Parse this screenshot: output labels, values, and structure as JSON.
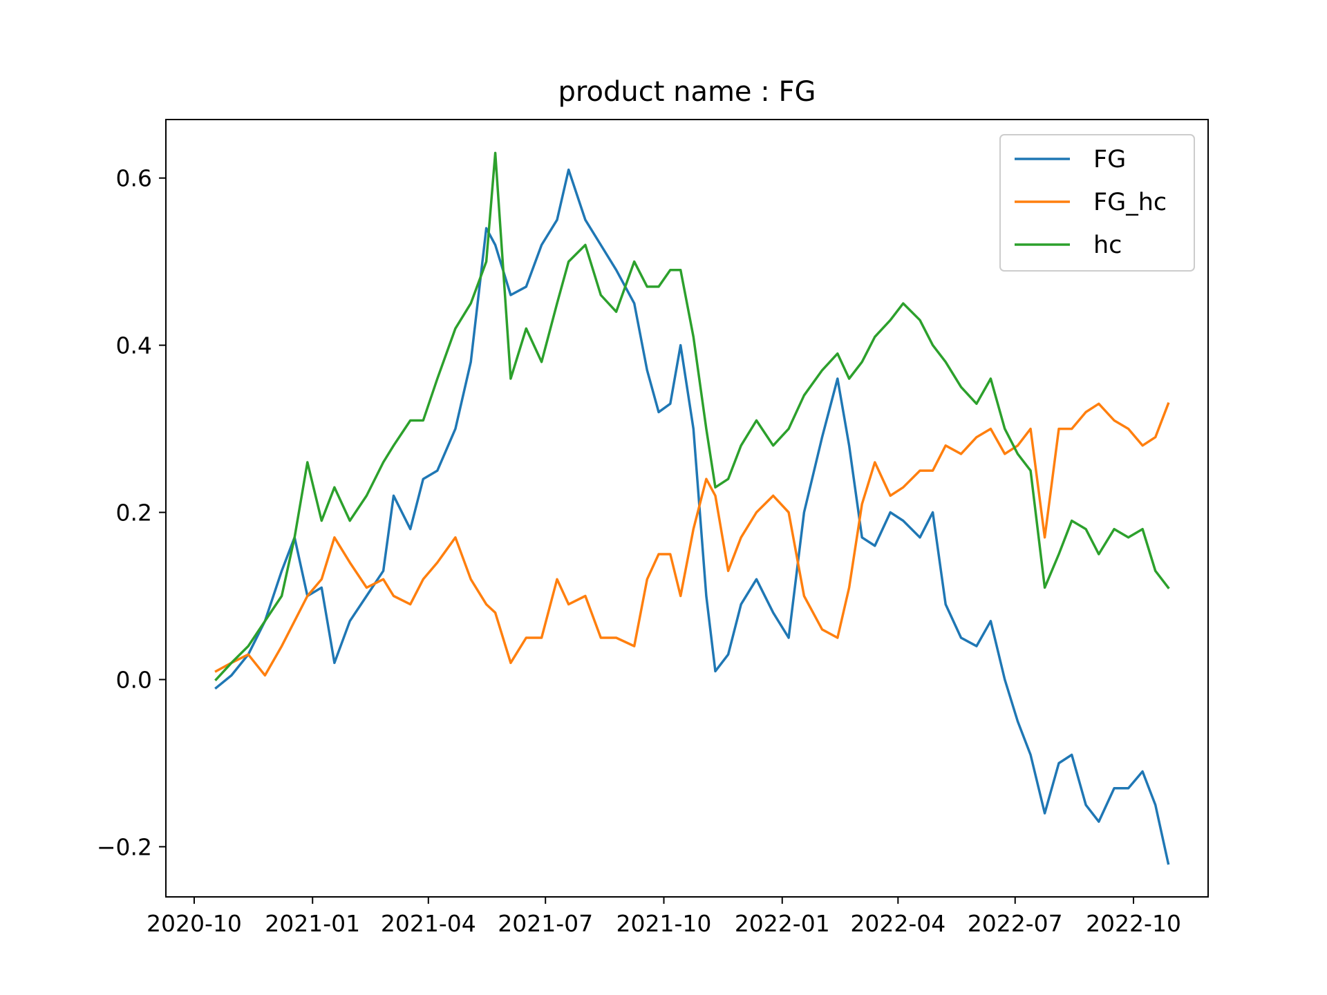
{
  "chart_data": {
    "type": "line",
    "title": "product name :    FG",
    "xlabel": "",
    "ylabel": "",
    "x_ticks": [
      "2020-10",
      "2021-01",
      "2021-04",
      "2021-07",
      "2021-10",
      "2022-01",
      "2022-04",
      "2022-07",
      "2022-10"
    ],
    "y_ticks": [
      "−0.2",
      "0.0",
      "0.2",
      "0.4",
      "0.6"
    ],
    "xlim": [
      "2020-09-09",
      "2022-11-28"
    ],
    "ylim": [
      -0.26,
      0.67
    ],
    "grid": false,
    "legend_position": "top-right",
    "series": [
      {
        "name": "FG",
        "color": "#1f77b4",
        "points": [
          [
            "2020-10-18",
            -0.01
          ],
          [
            "2020-10-30",
            0.005
          ],
          [
            "2020-11-12",
            0.03
          ],
          [
            "2020-11-25",
            0.07
          ],
          [
            "2020-12-08",
            0.13
          ],
          [
            "2020-12-18",
            0.17
          ],
          [
            "2020-12-28",
            0.1
          ],
          [
            "2021-01-08",
            0.11
          ],
          [
            "2021-01-18",
            0.02
          ],
          [
            "2021-01-30",
            0.07
          ],
          [
            "2021-02-12",
            0.1
          ],
          [
            "2021-02-25",
            0.13
          ],
          [
            "2021-03-05",
            0.22
          ],
          [
            "2021-03-18",
            0.18
          ],
          [
            "2021-03-28",
            0.24
          ],
          [
            "2021-04-08",
            0.25
          ],
          [
            "2021-04-22",
            0.3
          ],
          [
            "2021-05-04",
            0.38
          ],
          [
            "2021-05-16",
            0.54
          ],
          [
            "2021-05-23",
            0.52
          ],
          [
            "2021-06-04",
            0.46
          ],
          [
            "2021-06-16",
            0.47
          ],
          [
            "2021-06-28",
            0.52
          ],
          [
            "2021-07-10",
            0.55
          ],
          [
            "2021-07-19",
            0.61
          ],
          [
            "2021-08-01",
            0.55
          ],
          [
            "2021-08-13",
            0.52
          ],
          [
            "2021-08-25",
            0.49
          ],
          [
            "2021-09-08",
            0.45
          ],
          [
            "2021-09-18",
            0.37
          ],
          [
            "2021-09-27",
            0.32
          ],
          [
            "2021-10-06",
            0.33
          ],
          [
            "2021-10-14",
            0.4
          ],
          [
            "2021-10-24",
            0.3
          ],
          [
            "2021-11-03",
            0.1
          ],
          [
            "2021-11-10",
            0.01
          ],
          [
            "2021-11-20",
            0.03
          ],
          [
            "2021-11-30",
            0.09
          ],
          [
            "2021-12-12",
            0.12
          ],
          [
            "2021-12-25",
            0.08
          ],
          [
            "2022-01-06",
            0.05
          ],
          [
            "2022-01-18",
            0.2
          ],
          [
            "2022-02-01",
            0.29
          ],
          [
            "2022-02-13",
            0.36
          ],
          [
            "2022-02-22",
            0.28
          ],
          [
            "2022-03-04",
            0.17
          ],
          [
            "2022-03-14",
            0.16
          ],
          [
            "2022-03-26",
            0.2
          ],
          [
            "2022-04-05",
            0.19
          ],
          [
            "2022-04-18",
            0.17
          ],
          [
            "2022-04-28",
            0.2
          ],
          [
            "2022-05-08",
            0.09
          ],
          [
            "2022-05-20",
            0.05
          ],
          [
            "2022-06-01",
            0.04
          ],
          [
            "2022-06-12",
            0.07
          ],
          [
            "2022-06-23",
            0.0
          ],
          [
            "2022-07-03",
            -0.05
          ],
          [
            "2022-07-13",
            -0.09
          ],
          [
            "2022-07-24",
            -0.16
          ],
          [
            "2022-08-04",
            -0.1
          ],
          [
            "2022-08-14",
            -0.09
          ],
          [
            "2022-08-25",
            -0.15
          ],
          [
            "2022-09-04",
            -0.17
          ],
          [
            "2022-09-16",
            -0.13
          ],
          [
            "2022-09-27",
            -0.13
          ],
          [
            "2022-10-08",
            -0.11
          ],
          [
            "2022-10-18",
            -0.15
          ],
          [
            "2022-10-28",
            -0.22
          ]
        ]
      },
      {
        "name": "FG_hc",
        "color": "#ff7f0e",
        "points": [
          [
            "2020-10-18",
            0.01
          ],
          [
            "2020-10-30",
            0.02
          ],
          [
            "2020-11-12",
            0.03
          ],
          [
            "2020-11-25",
            0.005
          ],
          [
            "2020-12-08",
            0.04
          ],
          [
            "2020-12-18",
            0.07
          ],
          [
            "2020-12-28",
            0.1
          ],
          [
            "2021-01-08",
            0.12
          ],
          [
            "2021-01-18",
            0.17
          ],
          [
            "2021-01-30",
            0.14
          ],
          [
            "2021-02-12",
            0.11
          ],
          [
            "2021-02-25",
            0.12
          ],
          [
            "2021-03-05",
            0.1
          ],
          [
            "2021-03-18",
            0.09
          ],
          [
            "2021-03-28",
            0.12
          ],
          [
            "2021-04-08",
            0.14
          ],
          [
            "2021-04-22",
            0.17
          ],
          [
            "2021-05-04",
            0.12
          ],
          [
            "2021-05-16",
            0.09
          ],
          [
            "2021-05-23",
            0.08
          ],
          [
            "2021-06-04",
            0.02
          ],
          [
            "2021-06-16",
            0.05
          ],
          [
            "2021-06-28",
            0.05
          ],
          [
            "2021-07-10",
            0.12
          ],
          [
            "2021-07-19",
            0.09
          ],
          [
            "2021-08-01",
            0.1
          ],
          [
            "2021-08-13",
            0.05
          ],
          [
            "2021-08-25",
            0.05
          ],
          [
            "2021-09-08",
            0.04
          ],
          [
            "2021-09-18",
            0.12
          ],
          [
            "2021-09-27",
            0.15
          ],
          [
            "2021-10-06",
            0.15
          ],
          [
            "2021-10-14",
            0.1
          ],
          [
            "2021-10-24",
            0.18
          ],
          [
            "2021-11-03",
            0.24
          ],
          [
            "2021-11-10",
            0.22
          ],
          [
            "2021-11-20",
            0.13
          ],
          [
            "2021-11-30",
            0.17
          ],
          [
            "2021-12-12",
            0.2
          ],
          [
            "2021-12-25",
            0.22
          ],
          [
            "2022-01-06",
            0.2
          ],
          [
            "2022-01-18",
            0.1
          ],
          [
            "2022-02-01",
            0.06
          ],
          [
            "2022-02-13",
            0.05
          ],
          [
            "2022-02-22",
            0.11
          ],
          [
            "2022-03-04",
            0.21
          ],
          [
            "2022-03-14",
            0.26
          ],
          [
            "2022-03-26",
            0.22
          ],
          [
            "2022-04-05",
            0.23
          ],
          [
            "2022-04-18",
            0.25
          ],
          [
            "2022-04-28",
            0.25
          ],
          [
            "2022-05-08",
            0.28
          ],
          [
            "2022-05-20",
            0.27
          ],
          [
            "2022-06-01",
            0.29
          ],
          [
            "2022-06-12",
            0.3
          ],
          [
            "2022-06-23",
            0.27
          ],
          [
            "2022-07-03",
            0.28
          ],
          [
            "2022-07-13",
            0.3
          ],
          [
            "2022-07-24",
            0.17
          ],
          [
            "2022-08-04",
            0.3
          ],
          [
            "2022-08-14",
            0.3
          ],
          [
            "2022-08-25",
            0.32
          ],
          [
            "2022-09-04",
            0.33
          ],
          [
            "2022-09-16",
            0.31
          ],
          [
            "2022-09-27",
            0.3
          ],
          [
            "2022-10-08",
            0.28
          ],
          [
            "2022-10-18",
            0.29
          ],
          [
            "2022-10-28",
            0.33
          ]
        ]
      },
      {
        "name": "hc",
        "color": "#2ca02c",
        "points": [
          [
            "2020-10-18",
            0.0
          ],
          [
            "2020-10-30",
            0.02
          ],
          [
            "2020-11-12",
            0.04
          ],
          [
            "2020-11-25",
            0.07
          ],
          [
            "2020-12-08",
            0.1
          ],
          [
            "2020-12-18",
            0.17
          ],
          [
            "2020-12-28",
            0.26
          ],
          [
            "2021-01-08",
            0.19
          ],
          [
            "2021-01-18",
            0.23
          ],
          [
            "2021-01-30",
            0.19
          ],
          [
            "2021-02-12",
            0.22
          ],
          [
            "2021-02-25",
            0.26
          ],
          [
            "2021-03-05",
            0.28
          ],
          [
            "2021-03-18",
            0.31
          ],
          [
            "2021-03-28",
            0.31
          ],
          [
            "2021-04-08",
            0.36
          ],
          [
            "2021-04-22",
            0.42
          ],
          [
            "2021-05-04",
            0.45
          ],
          [
            "2021-05-16",
            0.5
          ],
          [
            "2021-05-23",
            0.63
          ],
          [
            "2021-06-04",
            0.36
          ],
          [
            "2021-06-16",
            0.42
          ],
          [
            "2021-06-28",
            0.38
          ],
          [
            "2021-07-10",
            0.45
          ],
          [
            "2021-07-19",
            0.5
          ],
          [
            "2021-08-01",
            0.52
          ],
          [
            "2021-08-13",
            0.46
          ],
          [
            "2021-08-25",
            0.44
          ],
          [
            "2021-09-08",
            0.5
          ],
          [
            "2021-09-18",
            0.47
          ],
          [
            "2021-09-27",
            0.47
          ],
          [
            "2021-10-06",
            0.49
          ],
          [
            "2021-10-14",
            0.49
          ],
          [
            "2021-10-24",
            0.41
          ],
          [
            "2021-11-03",
            0.3
          ],
          [
            "2021-11-10",
            0.23
          ],
          [
            "2021-11-20",
            0.24
          ],
          [
            "2021-11-30",
            0.28
          ],
          [
            "2021-12-12",
            0.31
          ],
          [
            "2021-12-25",
            0.28
          ],
          [
            "2022-01-06",
            0.3
          ],
          [
            "2022-01-18",
            0.34
          ],
          [
            "2022-02-01",
            0.37
          ],
          [
            "2022-02-13",
            0.39
          ],
          [
            "2022-02-22",
            0.36
          ],
          [
            "2022-03-04",
            0.38
          ],
          [
            "2022-03-14",
            0.41
          ],
          [
            "2022-03-26",
            0.43
          ],
          [
            "2022-04-05",
            0.45
          ],
          [
            "2022-04-18",
            0.43
          ],
          [
            "2022-04-28",
            0.4
          ],
          [
            "2022-05-08",
            0.38
          ],
          [
            "2022-05-20",
            0.35
          ],
          [
            "2022-06-01",
            0.33
          ],
          [
            "2022-06-12",
            0.36
          ],
          [
            "2022-06-23",
            0.3
          ],
          [
            "2022-07-03",
            0.27
          ],
          [
            "2022-07-13",
            0.25
          ],
          [
            "2022-07-24",
            0.11
          ],
          [
            "2022-08-04",
            0.15
          ],
          [
            "2022-08-14",
            0.19
          ],
          [
            "2022-08-25",
            0.18
          ],
          [
            "2022-09-04",
            0.15
          ],
          [
            "2022-09-16",
            0.18
          ],
          [
            "2022-09-27",
            0.17
          ],
          [
            "2022-10-08",
            0.18
          ],
          [
            "2022-10-18",
            0.13
          ],
          [
            "2022-10-28",
            0.11
          ]
        ]
      }
    ]
  }
}
